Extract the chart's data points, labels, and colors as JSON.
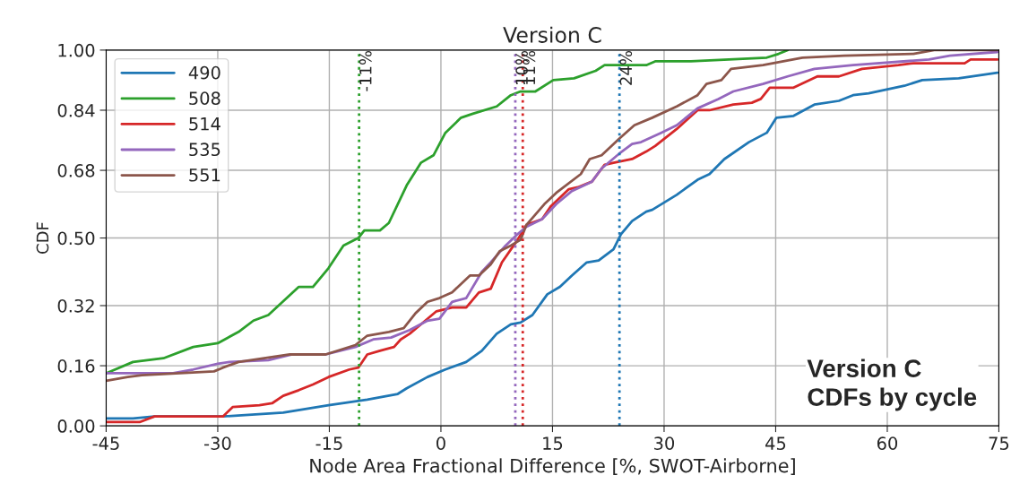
{
  "chart_data": {
    "type": "line",
    "title": "Version C",
    "xlabel": "Node Area Fractional Difference [%, SWOT-Airborne]",
    "ylabel": "CDF",
    "xlim": [
      -45,
      75
    ],
    "ylim": [
      0,
      1
    ],
    "xticks": [
      -45,
      -30,
      -15,
      0,
      15,
      30,
      45,
      60,
      75
    ],
    "yticks": [
      {
        "value": 0,
        "label": "0.00"
      },
      {
        "value": 0.16,
        "label": "0.16"
      },
      {
        "value": 0.32,
        "label": "0.32"
      },
      {
        "value": 0.5,
        "label": "0.50"
      },
      {
        "value": 0.68,
        "label": "0.68"
      },
      {
        "value": 0.84,
        "label": "0.84"
      },
      {
        "value": 1,
        "label": "1.00"
      }
    ],
    "grid": true,
    "legend": "top left",
    "marker": "none",
    "line_style": "solid",
    "annotations": [
      "Version C\nCDFs by cycle"
    ],
    "ref_lines": [
      {
        "axis": "x",
        "value": -11,
        "label": "-11%",
        "color": "#2ca02c",
        "line_style": "dotted"
      },
      {
        "axis": "x",
        "value": 10,
        "label": "10%",
        "color": "#9467bd",
        "line_style": "dotted"
      },
      {
        "axis": "x",
        "value": 11,
        "label": "11%",
        "color": "#d62728",
        "line_style": "dotted"
      },
      {
        "axis": "x",
        "value": 24,
        "label": "24%",
        "color": "#1f77b4",
        "line_style": "dotted"
      }
    ],
    "series": [
      {
        "name": "490",
        "color": "#1f77b4",
        "x": [
          -45,
          -41.4,
          -38.5,
          -29.3,
          -21.2,
          -15.1,
          -9.9,
          -5.8,
          -4.6,
          -1.8,
          0.6,
          3.4,
          5.5,
          7.5,
          9.4,
          10.7,
          12.3,
          14.3,
          16,
          17.6,
          19.6,
          21.2,
          23.2,
          24.2,
          25.7,
          27.6,
          28.4,
          31.7,
          34.5,
          36.1,
          38.1,
          41.4,
          43.8,
          45.1,
          47.4,
          50.2,
          53.5,
          55.4,
          57.5,
          62.3,
          64.7,
          69.6,
          74.8
        ],
        "values": [
          0.02,
          0.02,
          0.025,
          0.025,
          0.035,
          0.055,
          0.07,
          0.085,
          0.1,
          0.13,
          0.15,
          0.17,
          0.2,
          0.245,
          0.27,
          0.275,
          0.295,
          0.35,
          0.37,
          0.4,
          0.435,
          0.44,
          0.47,
          0.51,
          0.545,
          0.57,
          0.575,
          0.615,
          0.655,
          0.67,
          0.71,
          0.755,
          0.78,
          0.82,
          0.825,
          0.855,
          0.865,
          0.88,
          0.885,
          0.905,
          0.92,
          0.925,
          0.94
        ]
      },
      {
        "name": "508",
        "color": "#2ca02c",
        "x": [
          -45,
          -41.4,
          -37.3,
          -33.3,
          -30,
          -27.2,
          -25.2,
          -23.2,
          -19.1,
          -17.2,
          -15.1,
          -13.1,
          -11.1,
          -10.3,
          -8.2,
          -7,
          -4.6,
          -2.7,
          -1,
          0.6,
          2.7,
          4.2,
          7.5,
          9.4,
          10.7,
          12.7,
          15.1,
          17.9,
          20.8,
          22,
          27.6,
          28.8,
          33.6,
          43.8,
          45.4,
          46.6
        ],
        "values": [
          0.14,
          0.17,
          0.18,
          0.21,
          0.22,
          0.25,
          0.28,
          0.295,
          0.37,
          0.37,
          0.42,
          0.48,
          0.5,
          0.52,
          0.52,
          0.54,
          0.64,
          0.7,
          0.72,
          0.78,
          0.82,
          0.83,
          0.85,
          0.88,
          0.89,
          0.89,
          0.92,
          0.925,
          0.945,
          0.96,
          0.96,
          0.97,
          0.97,
          0.98,
          0.99,
          1.0
        ]
      },
      {
        "name": "514",
        "color": "#d62728",
        "x": [
          -45,
          -40.5,
          -38.5,
          -29.3,
          -28,
          -24.4,
          -22.7,
          -21.2,
          -19.1,
          -17.2,
          -15.1,
          -12.3,
          -11.1,
          -9.9,
          -8.2,
          -6.3,
          -5.4,
          -4.2,
          -2.7,
          -0.6,
          1.5,
          3.4,
          5.1,
          6.7,
          8.2,
          10.3,
          11.5,
          13.6,
          14.8,
          17.2,
          18.4,
          20.3,
          22,
          23.2,
          25.7,
          27.6,
          28.8,
          31.7,
          34.5,
          36.1,
          39.3,
          41.8,
          43,
          44.2,
          47.4,
          50.6,
          53.5,
          56.6,
          61.5,
          63.5,
          70.4,
          71.2,
          74.8
        ],
        "values": [
          0.01,
          0.01,
          0.025,
          0.025,
          0.05,
          0.055,
          0.06,
          0.08,
          0.095,
          0.11,
          0.13,
          0.15,
          0.155,
          0.19,
          0.2,
          0.21,
          0.23,
          0.245,
          0.27,
          0.305,
          0.315,
          0.315,
          0.355,
          0.365,
          0.435,
          0.495,
          0.535,
          0.55,
          0.585,
          0.63,
          0.635,
          0.65,
          0.695,
          0.7,
          0.71,
          0.73,
          0.745,
          0.79,
          0.84,
          0.84,
          0.855,
          0.86,
          0.87,
          0.9,
          0.9,
          0.93,
          0.93,
          0.95,
          0.96,
          0.965,
          0.965,
          0.975,
          0.975
        ]
      },
      {
        "name": "535",
        "color": "#9467bd",
        "x": [
          -45,
          -36,
          -33.3,
          -30,
          -28.4,
          -23.2,
          -20,
          -15.5,
          -11.5,
          -9.1,
          -6.7,
          -4.2,
          -1.8,
          -0.2,
          1.5,
          3.4,
          5.5,
          6.7,
          8.7,
          10.3,
          11.5,
          13.6,
          15.5,
          17.6,
          20.3,
          21.6,
          24,
          25.7,
          26.9,
          29.6,
          31.7,
          34.5,
          37.3,
          39.3,
          43.3,
          46.6,
          50.2,
          55.4,
          65.6,
          68.4,
          74.8
        ],
        "values": [
          0.14,
          0.14,
          0.15,
          0.165,
          0.17,
          0.175,
          0.19,
          0.19,
          0.21,
          0.23,
          0.235,
          0.255,
          0.28,
          0.285,
          0.33,
          0.34,
          0.41,
          0.435,
          0.48,
          0.51,
          0.53,
          0.55,
          0.59,
          0.625,
          0.65,
          0.685,
          0.725,
          0.75,
          0.755,
          0.78,
          0.8,
          0.845,
          0.87,
          0.89,
          0.91,
          0.93,
          0.95,
          0.96,
          0.975,
          0.985,
          0.995
        ]
      },
      {
        "name": "551",
        "color": "#8c564b",
        "x": [
          -45,
          -42.1,
          -40.2,
          -30.5,
          -29.3,
          -27.2,
          -20.3,
          -15.5,
          -11.5,
          -9.9,
          -7,
          -5,
          -3.4,
          -1.8,
          -0.2,
          1.5,
          3.9,
          5.1,
          6.7,
          7.9,
          9.4,
          10.7,
          11.5,
          13.9,
          15.5,
          18.8,
          20,
          21.6,
          24,
          26,
          28.4,
          31.7,
          34.5,
          35.7,
          37.7,
          39,
          43.3,
          48.6,
          54.2,
          63.5,
          66.3,
          74.8
        ],
        "values": [
          0.12,
          0.13,
          0.135,
          0.145,
          0.155,
          0.17,
          0.19,
          0.19,
          0.215,
          0.24,
          0.25,
          0.26,
          0.3,
          0.33,
          0.34,
          0.355,
          0.4,
          0.4,
          0.43,
          0.465,
          0.48,
          0.495,
          0.535,
          0.59,
          0.62,
          0.67,
          0.71,
          0.72,
          0.765,
          0.8,
          0.82,
          0.85,
          0.88,
          0.91,
          0.92,
          0.95,
          0.96,
          0.98,
          0.985,
          0.99,
          1.0,
          1.0
        ]
      }
    ]
  }
}
